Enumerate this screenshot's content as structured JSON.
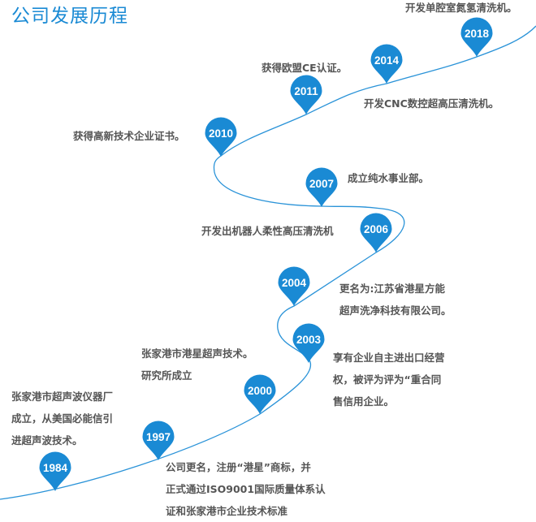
{
  "title": "公司发展历程",
  "colors": {
    "accent": "#1a8ad4",
    "text": "#555555"
  },
  "milestones": [
    {
      "year": "1984",
      "lines": [
        "张家港市超声波仪器厂",
        "成立，从美国必能信引",
        "进超声波技术。"
      ]
    },
    {
      "year": "1997",
      "lines": [
        "公司更名，注册“港星”商标，并",
        "正式通过ISO9001国际质量体系认",
        "证和张家港市企业技术标准"
      ]
    },
    {
      "year": "2000",
      "lines": [
        "张家港市港星超声技术。",
        "研究所成立"
      ]
    },
    {
      "year": "2003",
      "lines": [
        "享有企业自主进出口经营",
        "权，被评为评为“重合同",
        "售信用企业。"
      ]
    },
    {
      "year": "2004",
      "lines": [
        "更名为:江苏省港星方能",
        "超声洗净科技有限公司。"
      ]
    },
    {
      "year": "2006",
      "lines": [
        "开发出机器人柔性高压清洗机"
      ]
    },
    {
      "year": "2007",
      "lines": [
        "成立纯水事业部。"
      ]
    },
    {
      "year": "2010",
      "lines": [
        "获得高新技术企业证书。"
      ]
    },
    {
      "year": "2011",
      "lines": [
        "获得欧盟CE认证。"
      ]
    },
    {
      "year": "2014",
      "lines": [
        "开发CNC数控超高压清洗机。"
      ]
    },
    {
      "year": "2018",
      "lines": [
        "开发单腔室氮氢清洗机。"
      ]
    }
  ]
}
